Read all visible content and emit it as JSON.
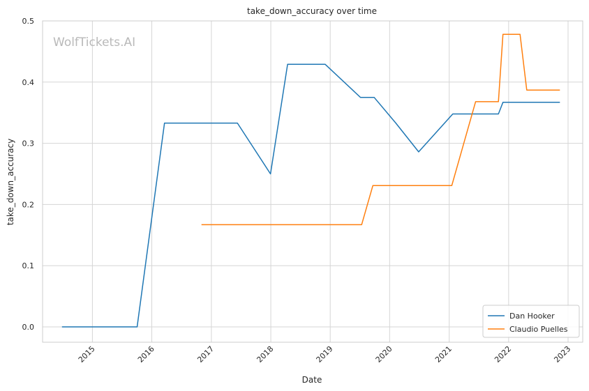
{
  "chart_data": {
    "type": "line",
    "title": "take_down_accuracy over time",
    "xlabel": "Date",
    "ylabel": "take_down_accuracy",
    "watermark": "WolfTickets.AI",
    "x_ticks": [
      "2015",
      "2016",
      "2017",
      "2018",
      "2019",
      "2020",
      "2021",
      "2022",
      "2023"
    ],
    "y_ticks": [
      "0.0",
      "0.1",
      "0.2",
      "0.3",
      "0.4",
      "0.5"
    ],
    "xlim": [
      "2014-03-01",
      "2023-04-01"
    ],
    "ylim": [
      -0.025,
      0.5
    ],
    "grid": true,
    "legend_position": "lower-right",
    "series": [
      {
        "name": "Dan Hooker",
        "color": "#1f77b4",
        "points": [
          [
            "2014-06-28",
            0.0
          ],
          [
            "2015-10-03",
            0.0
          ],
          [
            "2016-03-19",
            0.333
          ],
          [
            "2017-06-10",
            0.333
          ],
          [
            "2017-12-30",
            0.25
          ],
          [
            "2018-04-14",
            0.429
          ],
          [
            "2018-12-01",
            0.429
          ],
          [
            "2019-07-06",
            0.375
          ],
          [
            "2019-09-28",
            0.375
          ],
          [
            "2020-02-08",
            0.333
          ],
          [
            "2020-06-27",
            0.286
          ],
          [
            "2021-01-23",
            0.348
          ],
          [
            "2021-10-30",
            0.348
          ],
          [
            "2021-11-27",
            0.367
          ],
          [
            "2022-11-12",
            0.367
          ]
        ]
      },
      {
        "name": "Claudio Puelles",
        "color": "#ff7f0e",
        "points": [
          [
            "2016-11-01",
            0.167
          ],
          [
            "2019-07-13",
            0.167
          ],
          [
            "2019-09-20",
            0.231
          ],
          [
            "2021-01-17",
            0.231
          ],
          [
            "2021-06-12",
            0.368
          ],
          [
            "2021-10-30",
            0.368
          ],
          [
            "2021-11-27",
            0.478
          ],
          [
            "2022-03-12",
            0.478
          ],
          [
            "2022-04-22",
            0.387
          ],
          [
            "2022-11-12",
            0.387
          ]
        ]
      }
    ]
  }
}
